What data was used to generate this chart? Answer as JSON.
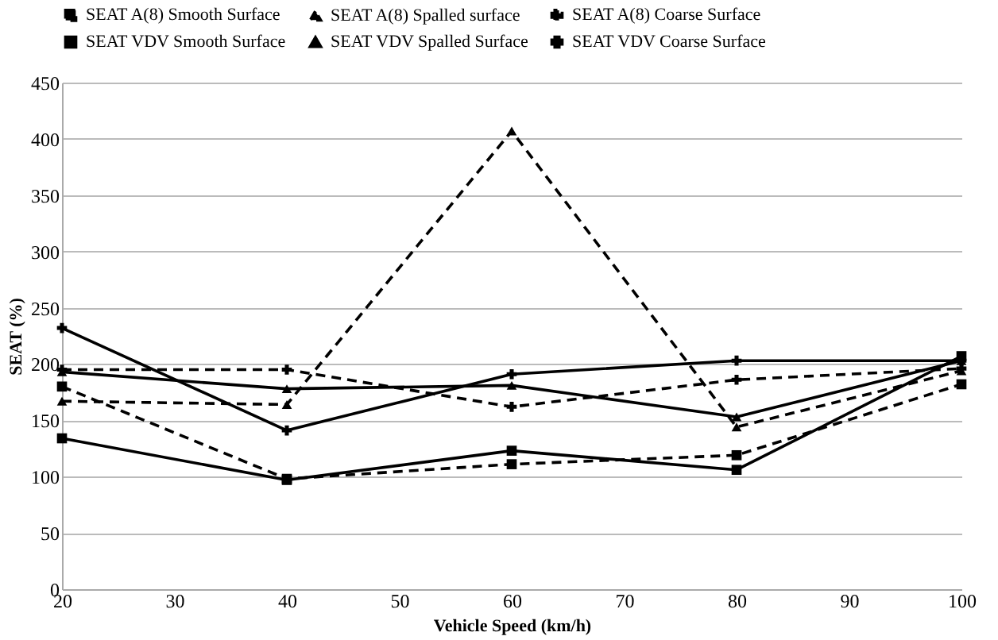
{
  "chart_data": {
    "type": "line",
    "xlabel": "Vehicle Speed (km/h)",
    "ylabel": "SEAT (%)",
    "x": [
      20,
      40,
      60,
      80,
      100
    ],
    "xlim": [
      20,
      100
    ],
    "xticks": [
      20,
      30,
      40,
      50,
      60,
      70,
      80,
      90,
      100
    ],
    "ylim": [
      0,
      450
    ],
    "yticks": [
      0,
      50,
      100,
      150,
      200,
      250,
      300,
      350,
      400,
      450
    ],
    "grid": "y",
    "legend": "top",
    "series": [
      {
        "name": "SEAT A(8) Smooth Surface",
        "color": "#000000",
        "marker": "square",
        "line_style": "dashed",
        "values": [
          180,
          98,
          111,
          119,
          182
        ]
      },
      {
        "name": "SEAT A(8) Spalled surface",
        "color": "#000000",
        "marker": "triangle",
        "line_style": "dashed",
        "values": [
          167,
          164,
          407,
          144,
          194
        ]
      },
      {
        "name": "SEAT A(8) Coarse Surface",
        "color": "#000000",
        "marker": "cross",
        "line_style": "dashed",
        "values": [
          195,
          195,
          162,
          186,
          196
        ]
      },
      {
        "name": "SEAT VDV Smooth Surface",
        "color": "#000000",
        "marker": "square",
        "line_style": "solid",
        "values": [
          134,
          97,
          123,
          106,
          207
        ]
      },
      {
        "name": "SEAT VDV Spalled Surface",
        "color": "#000000",
        "marker": "triangle",
        "line_style": "solid",
        "values": [
          193,
          178,
          181,
          153,
          203
        ]
      },
      {
        "name": "SEAT VDV Coarse Surface",
        "color": "#000000",
        "marker": "cross",
        "line_style": "solid",
        "values": [
          232,
          141,
          191,
          203,
          203
        ]
      }
    ]
  }
}
